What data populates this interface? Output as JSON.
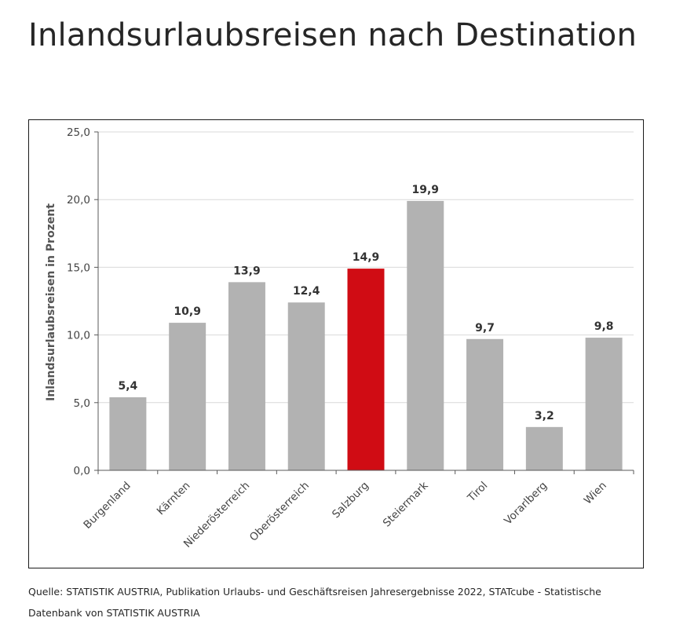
{
  "page": {
    "title": "Inlandsurlaubsreisen nach Destination",
    "source": "Quelle: STATISTIK AUSTRIA, Publikation Urlaubs- und Geschäftsreisen Jahresergebnisse 2022, STATcube - Statistische Datenbank von STATISTIK AUSTRIA"
  },
  "chart_data": {
    "type": "bar",
    "title": "Inlandsurlaubsreisen nach Destination",
    "xlabel": "",
    "ylabel": "Inlandsurlaubsreisen in Prozent",
    "ylim": [
      0,
      25
    ],
    "yticks": [
      0,
      5,
      10,
      15,
      20,
      25
    ],
    "ytick_labels": [
      "0,0",
      "5,0",
      "10,0",
      "15,0",
      "20,0",
      "25,0"
    ],
    "grid": true,
    "categories": [
      "Burgenland",
      "Kärnten",
      "Niederösterreich",
      "Oberösterreich",
      "Salzburg",
      "Steiermark",
      "Tirol",
      "Vorarlberg",
      "Wien"
    ],
    "values": [
      5.4,
      10.9,
      13.9,
      12.4,
      14.9,
      19.9,
      9.7,
      3.2,
      9.8
    ],
    "value_labels": [
      "5,4",
      "10,9",
      "13,9",
      "12,4",
      "14,9",
      "19,9",
      "9,7",
      "3,2",
      "9,8"
    ],
    "highlight": "Salzburg",
    "colors": {
      "bar": "#b2b2b2",
      "highlight": "#d00c14",
      "grid": "#d9d9d9",
      "axis": "#595959"
    }
  }
}
